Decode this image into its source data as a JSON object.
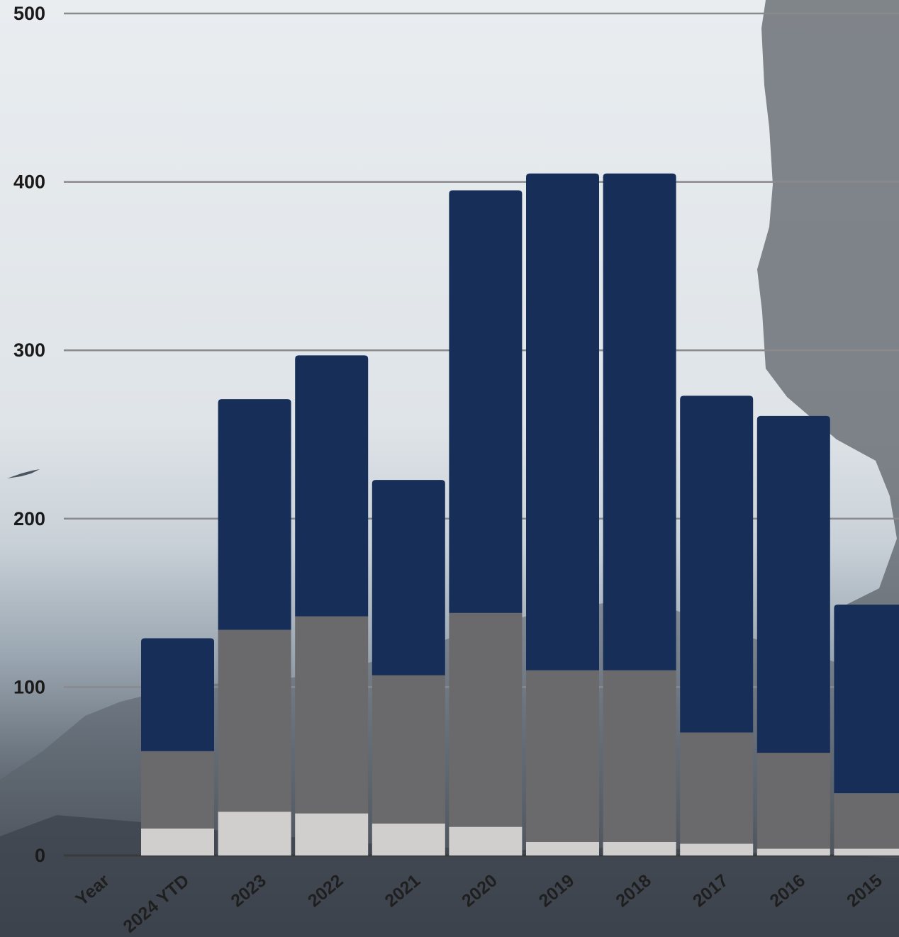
{
  "chart_data": {
    "type": "bar",
    "stacked": true,
    "categories": [
      "2024 YTD",
      "2023",
      "2022",
      "2021",
      "2020",
      "2019",
      "2018",
      "2017",
      "2016",
      "2015"
    ],
    "x_header_label": "Year",
    "series": [
      {
        "values": [
          16,
          26,
          25,
          19,
          17,
          8,
          8,
          7,
          4,
          4
        ],
        "color": "#d0cfcd"
      },
      {
        "values": [
          46,
          108,
          117,
          88,
          127,
          102,
          102,
          66,
          57,
          33
        ],
        "color": "#6a6a6c"
      },
      {
        "values": [
          67,
          137,
          155,
          116,
          251,
          295,
          295,
          200,
          200,
          112
        ],
        "color": "#172f58"
      }
    ],
    "ylim": [
      0,
      500
    ],
    "y_ticks": [
      0,
      100,
      200,
      300,
      400,
      500
    ],
    "grid": true,
    "title": "",
    "xlabel": "",
    "ylabel": ""
  }
}
